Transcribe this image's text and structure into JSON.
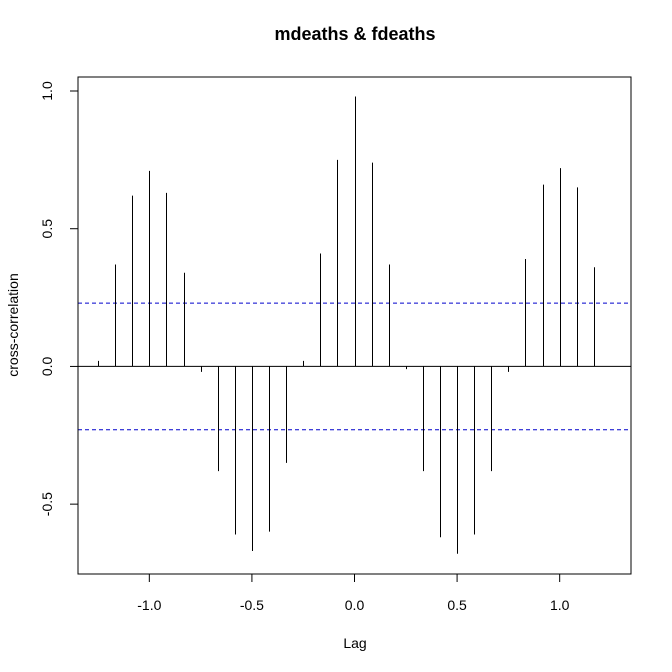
{
  "chart_data": {
    "type": "bar",
    "title": "mdeaths & fdeaths",
    "xlabel": "Lag",
    "ylabel": "cross-correlation",
    "xlim": [
      -1.333,
      1.333
    ],
    "ylim": [
      -0.75,
      1.0
    ],
    "x_ticks": [
      -1.0,
      -0.5,
      0.0,
      0.5,
      1.0
    ],
    "x_tick_labels": [
      "-1.0",
      "-0.5",
      "0.0",
      "0.5",
      "1.0"
    ],
    "y_ticks": [
      -0.5,
      0.0,
      0.5,
      1.0
    ],
    "y_tick_labels": [
      "-0.5",
      "0.0",
      "0.5",
      "1.0"
    ],
    "ci": 0.23,
    "grid": false,
    "colors": {
      "line": "#000000",
      "ci_line": "#0000cc"
    },
    "lags": [
      -1.25,
      -1.1667,
      -1.0833,
      -1.0,
      -0.9167,
      -0.8333,
      -0.75,
      -0.6667,
      -0.5833,
      -0.5,
      -0.4167,
      -0.3333,
      -0.25,
      -0.1667,
      -0.0833,
      0.0,
      0.0833,
      0.1667,
      0.25,
      0.3333,
      0.4167,
      0.5,
      0.5833,
      0.6667,
      0.75,
      0.8333,
      0.9167,
      1.0,
      1.0833,
      1.1667
    ],
    "values": [
      0.02,
      0.37,
      0.62,
      0.71,
      0.63,
      0.34,
      -0.02,
      -0.38,
      -0.61,
      -0.67,
      -0.6,
      -0.35,
      0.02,
      0.41,
      0.75,
      0.98,
      0.74,
      0.37,
      -0.01,
      -0.38,
      -0.62,
      -0.68,
      -0.61,
      -0.38,
      -0.02,
      0.39,
      0.66,
      0.72,
      0.65,
      0.36
    ]
  }
}
